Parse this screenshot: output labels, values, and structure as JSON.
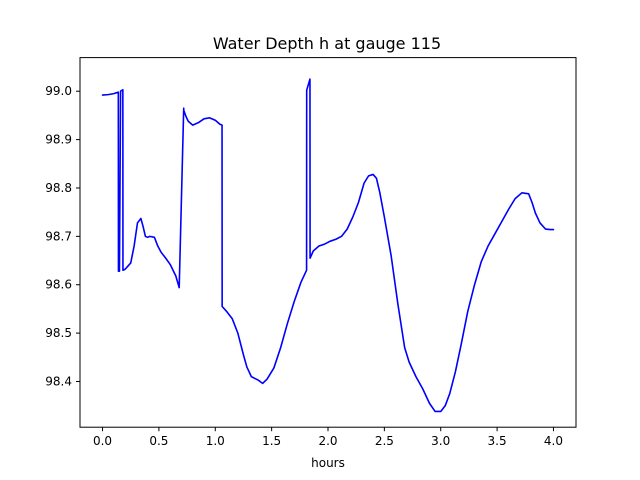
{
  "chart_data": {
    "type": "line",
    "title": "Water Depth h at gauge 115",
    "xlabel": "hours",
    "ylabel": "",
    "xlim": [
      -0.2,
      4.2
    ],
    "ylim": [
      98.3055,
      99.0695
    ],
    "xticks": [
      0.0,
      0.5,
      1.0,
      1.5,
      2.0,
      2.5,
      3.0,
      3.5,
      4.0
    ],
    "xtick_labels": [
      "0.0",
      "0.5",
      "1.0",
      "1.5",
      "2.0",
      "2.5",
      "3.0",
      "3.5",
      "4.0"
    ],
    "yticks": [
      98.4,
      98.5,
      98.6,
      98.7,
      98.8,
      98.9,
      99.0
    ],
    "ytick_labels": [
      "98.4",
      "98.5",
      "98.6",
      "98.7",
      "98.8",
      "98.9",
      "99.0"
    ],
    "grid": false,
    "series": [
      {
        "color": "#0000ff",
        "x": [
          0.0,
          0.05,
          0.1,
          0.14,
          0.141,
          0.15,
          0.16,
          0.18,
          0.181,
          0.2,
          0.25,
          0.28,
          0.31,
          0.34,
          0.36,
          0.38,
          0.4,
          0.42,
          0.46,
          0.49,
          0.52,
          0.56,
          0.6,
          0.65,
          0.68,
          0.72,
          0.721,
          0.74,
          0.76,
          0.8,
          0.85,
          0.9,
          0.95,
          1.0,
          1.04,
          1.06,
          1.061,
          1.1,
          1.15,
          1.2,
          1.25,
          1.28,
          1.32,
          1.38,
          1.42,
          1.46,
          1.52,
          1.58,
          1.64,
          1.7,
          1.76,
          1.81,
          1.811,
          1.84,
          1.841,
          1.87,
          1.92,
          1.97,
          2.02,
          2.07,
          2.12,
          2.17,
          2.22,
          2.27,
          2.32,
          2.36,
          2.4,
          2.43,
          2.46,
          2.5,
          2.56,
          2.62,
          2.68,
          2.72,
          2.78,
          2.84,
          2.9,
          2.95,
          3.0,
          3.04,
          3.08,
          3.13,
          3.18,
          3.24,
          3.3,
          3.36,
          3.42,
          3.48,
          3.54,
          3.6,
          3.66,
          3.72,
          3.78,
          3.81,
          3.84,
          3.88,
          3.93,
          3.97,
          4.0
        ],
        "y": [
          98.992,
          98.993,
          98.995,
          98.998,
          98.628,
          98.628,
          99.0,
          99.003,
          98.63,
          98.632,
          98.645,
          98.68,
          98.728,
          98.737,
          98.72,
          98.7,
          98.698,
          98.7,
          98.698,
          98.68,
          98.667,
          98.655,
          98.642,
          98.618,
          98.594,
          98.965,
          98.96,
          98.948,
          98.938,
          98.93,
          98.935,
          98.943,
          98.945,
          98.94,
          98.932,
          98.93,
          98.555,
          98.545,
          98.53,
          98.5,
          98.455,
          98.43,
          98.41,
          98.403,
          98.396,
          98.405,
          98.428,
          98.47,
          98.52,
          98.565,
          98.605,
          98.63,
          99.002,
          99.025,
          98.655,
          98.67,
          98.68,
          98.684,
          98.69,
          98.694,
          98.7,
          98.715,
          98.74,
          98.77,
          98.81,
          98.825,
          98.828,
          98.82,
          98.79,
          98.74,
          98.66,
          98.56,
          98.47,
          98.44,
          98.41,
          98.385,
          98.355,
          98.338,
          98.338,
          98.35,
          98.375,
          98.42,
          98.475,
          98.545,
          98.6,
          98.648,
          98.68,
          98.705,
          98.73,
          98.755,
          98.778,
          98.79,
          98.788,
          98.77,
          98.748,
          98.728,
          98.715,
          98.714,
          98.714
        ]
      }
    ]
  }
}
